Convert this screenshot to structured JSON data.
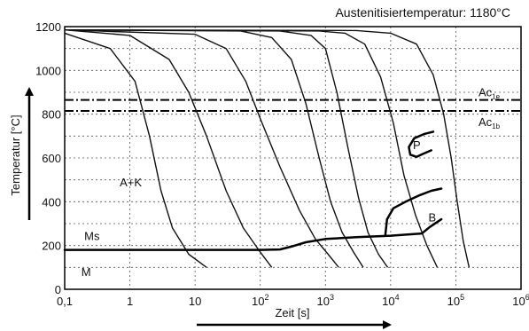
{
  "chart_data": {
    "type": "line",
    "title": "Austenitisiertemperatur: 1180°C",
    "xlabel": "Zeit [s]",
    "ylabel": "Temperatur [°C]",
    "x_scale": "log",
    "xlim": [
      0.1,
      1000000
    ],
    "ylim": [
      0,
      1200
    ],
    "grid": true,
    "x_ticks": [
      {
        "value": 0.1,
        "label": "0,1"
      },
      {
        "value": 1,
        "label": "1"
      },
      {
        "value": 10,
        "label": "10"
      },
      {
        "value": 100,
        "label": "10",
        "sup": "2"
      },
      {
        "value": 1000,
        "label": "10",
        "sup": "3"
      },
      {
        "value": 10000,
        "label": "10",
        "sup": "4"
      },
      {
        "value": 100000,
        "label": "10",
        "sup": "5"
      },
      {
        "value": 1000000,
        "label": "10",
        "sup": "6"
      }
    ],
    "y_ticks": [
      {
        "value": 0,
        "label": "0"
      },
      {
        "value": 200,
        "label": "200"
      },
      {
        "value": 400,
        "label": "400"
      },
      {
        "value": 600,
        "label": "600"
      },
      {
        "value": 800,
        "label": "800"
      },
      {
        "value": 1000,
        "label": "1000"
      },
      {
        "value": 1200,
        "label": "1200"
      }
    ],
    "reference_lines": [
      {
        "name": "Ac1e",
        "label": "Ac",
        "sub": "1e",
        "y": 865
      },
      {
        "name": "Ac1b",
        "label": "Ac",
        "sub": "1b",
        "y": 815
      }
    ],
    "region_labels": [
      {
        "text": "A+K",
        "x": 0.7,
        "y": 470
      },
      {
        "text": "P",
        "x": 22000,
        "y": 640
      },
      {
        "text": "B",
        "x": 38000,
        "y": 310
      },
      {
        "text": "Ms",
        "x": 0.2,
        "y": 225
      },
      {
        "text": "M",
        "x": 0.18,
        "y": 60
      }
    ],
    "cooling_curves": [
      {
        "points": [
          [
            0.1,
            1170
          ],
          [
            0.5,
            1100
          ],
          [
            1.2,
            950
          ],
          [
            2,
            700
          ],
          [
            3,
            450
          ],
          [
            4.5,
            280
          ],
          [
            8,
            160
          ],
          [
            15,
            100
          ]
        ]
      },
      {
        "points": [
          [
            0.1,
            1185
          ],
          [
            1,
            1160
          ],
          [
            4,
            1050
          ],
          [
            8,
            900
          ],
          [
            15,
            700
          ],
          [
            30,
            450
          ],
          [
            55,
            280
          ],
          [
            100,
            170
          ],
          [
            150,
            100
          ]
        ]
      },
      {
        "points": [
          [
            0.1,
            1185
          ],
          [
            10,
            1165
          ],
          [
            30,
            1100
          ],
          [
            60,
            950
          ],
          [
            100,
            780
          ],
          [
            200,
            560
          ],
          [
            400,
            360
          ],
          [
            700,
            230
          ],
          [
            1100,
            160
          ],
          [
            1600,
            100
          ]
        ]
      },
      {
        "points": [
          [
            0.1,
            1185
          ],
          [
            50,
            1180
          ],
          [
            150,
            1150
          ],
          [
            300,
            1050
          ],
          [
            500,
            850
          ],
          [
            800,
            600
          ],
          [
            1200,
            400
          ],
          [
            1800,
            260
          ],
          [
            2700,
            170
          ],
          [
            3800,
            100
          ]
        ]
      },
      {
        "points": [
          [
            0.1,
            1185
          ],
          [
            200,
            1180
          ],
          [
            600,
            1160
          ],
          [
            1000,
            1100
          ],
          [
            1500,
            900
          ],
          [
            2200,
            650
          ],
          [
            3200,
            420
          ],
          [
            4500,
            260
          ],
          [
            6500,
            160
          ],
          [
            9000,
            100
          ]
        ]
      },
      {
        "points": [
          [
            0.1,
            1185
          ],
          [
            800,
            1180
          ],
          [
            2000,
            1170
          ],
          [
            4000,
            1120
          ],
          [
            7000,
            970
          ],
          [
            11000,
            760
          ],
          [
            16000,
            520
          ],
          [
            24000,
            340
          ],
          [
            36000,
            200
          ],
          [
            52000,
            100
          ]
        ]
      },
      {
        "points": [
          [
            0.1,
            1185
          ],
          [
            3000,
            1182
          ],
          [
            10000,
            1170
          ],
          [
            25000,
            1120
          ],
          [
            45000,
            980
          ],
          [
            65000,
            800
          ],
          [
            85000,
            600
          ],
          [
            105000,
            400
          ],
          [
            130000,
            220
          ],
          [
            160000,
            100
          ]
        ]
      }
    ],
    "transformation_lines": [
      {
        "name": "Ms",
        "points": [
          [
            0.1,
            180
          ],
          [
            100,
            180
          ],
          [
            200,
            182
          ],
          [
            300,
            195
          ],
          [
            500,
            215
          ],
          [
            1000,
            230
          ],
          [
            3000,
            238
          ],
          [
            10000,
            245
          ],
          [
            30000,
            255
          ],
          [
            40000,
            285
          ],
          [
            60000,
            320
          ]
        ]
      },
      {
        "name": "P",
        "points": [
          [
            45000,
            720
          ],
          [
            33000,
            710
          ],
          [
            23000,
            690
          ],
          [
            19000,
            650
          ],
          [
            20000,
            615
          ],
          [
            25000,
            605
          ],
          [
            32000,
            620
          ],
          [
            42000,
            635
          ]
        ]
      },
      {
        "name": "B",
        "points": [
          [
            8300,
            250
          ],
          [
            8800,
            320
          ],
          [
            11000,
            370
          ],
          [
            17000,
            400
          ],
          [
            28000,
            430
          ],
          [
            42000,
            450
          ],
          [
            60000,
            460
          ]
        ]
      }
    ]
  }
}
